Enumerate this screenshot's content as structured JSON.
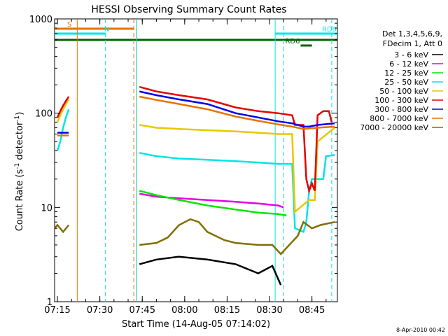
{
  "chart_data": {
    "type": "line",
    "title": "HESSI Observing Summary Count Rates",
    "xlabel": "Start Time (14-Aug-05 07:14:02)",
    "ylabel_main": "Count Rate (s",
    "ylabel_sup1": "-1",
    "ylabel_mid": " detector",
    "ylabel_sup2": "-1",
    "ylabel_end": ")",
    "yscale": "log",
    "xlim": [
      "07:14",
      "08:54"
    ],
    "ylim": [
      1,
      1000
    ],
    "x_ticks": [
      "07:15",
      "07:30",
      "07:45",
      "08:00",
      "08:15",
      "08:30",
      "08:45"
    ],
    "y_ticks": [
      "1",
      "10",
      "100",
      "1000"
    ],
    "legend_header": [
      "Det 1,3,4,5,6,9,",
      "FDecim 1, Att 0"
    ],
    "legend_position": "right",
    "footer": "8-Apr-2010 00:42",
    "flags": [
      {
        "label": "S",
        "start": "07:14",
        "end": "07:42",
        "color": "#e67300"
      },
      {
        "label": "N",
        "start": "07:14",
        "end": "07:32",
        "color": "#00e5e5"
      },
      {
        "label": "RD9",
        "start": "08:32",
        "end": "08:54",
        "color": "#00e5e5"
      },
      {
        "label": "RD6",
        "start": "08:41",
        "end": "08:45",
        "color": "#006400"
      }
    ],
    "full_flag_color": "#006400",
    "vlines": [
      {
        "time": "07:22",
        "color": "#e67300",
        "style": "solid"
      },
      {
        "time": "07:32",
        "color": "#00e5e5",
        "style": "dashed"
      },
      {
        "time": "07:42",
        "color": "#e67300",
        "style": "dashed"
      },
      {
        "time": "07:43",
        "color": "#e67300",
        "style": "solid"
      },
      {
        "time": "07:43",
        "color": "#00e5e5",
        "style": "solid"
      },
      {
        "time": "08:32",
        "color": "#00e5e5",
        "style": "solid"
      },
      {
        "time": "08:35",
        "color": "#00e5e5",
        "style": "dashed"
      },
      {
        "time": "08:52",
        "color": "#00e5e5",
        "style": "dashed"
      }
    ],
    "series": [
      {
        "name": "3 - 6 keV",
        "color": "#000000",
        "values": [
          [
            "07:44",
            2.5
          ],
          [
            "07:50",
            2.8
          ],
          [
            "07:58",
            3.0
          ],
          [
            "08:08",
            2.8
          ],
          [
            "08:18",
            2.5
          ],
          [
            "08:26",
            2.0
          ],
          [
            "08:31",
            2.4
          ],
          [
            "08:34",
            1.5
          ]
        ]
      },
      {
        "name": "6 - 12 keV",
        "color": "#e600e6",
        "values": [
          [
            "07:44",
            14
          ],
          [
            "07:50",
            13
          ],
          [
            "07:58",
            12.5
          ],
          [
            "08:08",
            12
          ],
          [
            "08:18",
            11.5
          ],
          [
            "08:26",
            11
          ],
          [
            "08:33",
            10.5
          ],
          [
            "08:35",
            10
          ]
        ]
      },
      {
        "name": "12 - 25 keV",
        "color": "#00e600",
        "values": [
          [
            "07:44",
            15
          ],
          [
            "07:50",
            13.5
          ],
          [
            "07:58",
            12
          ],
          [
            "08:08",
            10.5
          ],
          [
            "08:18",
            9.5
          ],
          [
            "08:26",
            8.8
          ],
          [
            "08:33",
            8.5
          ],
          [
            "08:36",
            8.2
          ]
        ]
      },
      {
        "name": "25 - 50 keV",
        "color": "#00e5e5",
        "values": [
          [
            "07:15",
            40
          ],
          [
            "07:16",
            50
          ],
          [
            "07:17",
            70
          ],
          [
            "07:18",
            90
          ],
          [
            "07:19",
            110
          ],
          [
            "07:44",
            38
          ],
          [
            "07:50",
            35
          ],
          [
            "07:58",
            33
          ],
          [
            "08:08",
            32
          ],
          [
            "08:18",
            31
          ],
          [
            "08:26",
            30
          ],
          [
            "08:33",
            29
          ],
          [
            "08:38",
            29
          ],
          [
            "08:39",
            6
          ],
          [
            "08:42",
            5.5
          ],
          [
            "08:43",
            7
          ],
          [
            "08:44",
            15
          ],
          [
            "08:45",
            20
          ],
          [
            "08:49",
            20
          ],
          [
            "08:50",
            35
          ],
          [
            "08:53",
            36
          ]
        ]
      },
      {
        "name": "50 - 100 keV",
        "color": "#e6c800",
        "values": [
          [
            "07:15",
            80
          ],
          [
            "07:16",
            95
          ],
          [
            "07:17",
            110
          ],
          [
            "07:18",
            125
          ],
          [
            "07:19",
            140
          ],
          [
            "07:44",
            75
          ],
          [
            "07:50",
            70
          ],
          [
            "07:58",
            68
          ],
          [
            "08:08",
            66
          ],
          [
            "08:18",
            64
          ],
          [
            "08:26",
            62
          ],
          [
            "08:33",
            60
          ],
          [
            "08:38",
            60
          ],
          [
            "08:39",
            9
          ],
          [
            "08:44",
            12
          ],
          [
            "08:46",
            12
          ],
          [
            "08:47",
            50
          ],
          [
            "08:53",
            70
          ]
        ]
      },
      {
        "name": "100 - 300 keV",
        "color": "#e60000",
        "values": [
          [
            "07:15",
            90
          ],
          [
            "07:16",
            105
          ],
          [
            "07:17",
            120
          ],
          [
            "07:18",
            135
          ],
          [
            "07:19",
            150
          ],
          [
            "07:44",
            190
          ],
          [
            "07:50",
            170
          ],
          [
            "07:58",
            155
          ],
          [
            "08:08",
            140
          ],
          [
            "08:18",
            115
          ],
          [
            "08:26",
            105
          ],
          [
            "08:33",
            100
          ],
          [
            "08:38",
            95
          ],
          [
            "08:39",
            75
          ],
          [
            "08:42",
            75
          ],
          [
            "08:43",
            20
          ],
          [
            "08:44",
            15
          ],
          [
            "08:45",
            18
          ],
          [
            "08:46",
            15
          ],
          [
            "08:47",
            95
          ],
          [
            "08:49",
            105
          ],
          [
            "08:51",
            105
          ],
          [
            "08:52",
            80
          ]
        ]
      },
      {
        "name": "300 - 800 keV",
        "color": "#0000e6",
        "values": [
          [
            "07:15",
            62
          ],
          [
            "07:19",
            62
          ],
          [
            "07:44",
            170
          ],
          [
            "07:50",
            155
          ],
          [
            "07:58",
            140
          ],
          [
            "08:08",
            125
          ],
          [
            "08:18",
            100
          ],
          [
            "08:26",
            90
          ],
          [
            "08:33",
            82
          ],
          [
            "08:38",
            78
          ],
          [
            "08:42",
            72
          ],
          [
            "08:44",
            72
          ],
          [
            "08:47",
            75
          ],
          [
            "08:53",
            78
          ]
        ]
      },
      {
        "name": "800 - 7000 keV",
        "color": "#e67300",
        "values": [
          [
            "07:15",
            58
          ],
          [
            "07:19",
            58
          ],
          [
            "07:44",
            150
          ],
          [
            "07:50",
            138
          ],
          [
            "07:58",
            125
          ],
          [
            "08:08",
            110
          ],
          [
            "08:18",
            92
          ],
          [
            "08:26",
            83
          ],
          [
            "08:33",
            76
          ],
          [
            "08:38",
            72
          ],
          [
            "08:42",
            68
          ],
          [
            "08:47",
            70
          ],
          [
            "08:53",
            72
          ]
        ]
      },
      {
        "name": "7000 - 20000 keV",
        "color": "#807000",
        "values": [
          [
            "07:14",
            6
          ],
          [
            "07:15",
            6.5
          ],
          [
            "07:17",
            5.5
          ],
          [
            "07:19",
            6.5
          ],
          [
            "07:44",
            4.0
          ],
          [
            "07:50",
            4.2
          ],
          [
            "07:54",
            4.8
          ],
          [
            "07:58",
            6.5
          ],
          [
            "08:02",
            7.5
          ],
          [
            "08:05",
            7.0
          ],
          [
            "08:08",
            5.5
          ],
          [
            "08:14",
            4.5
          ],
          [
            "08:18",
            4.2
          ],
          [
            "08:26",
            4.0
          ],
          [
            "08:31",
            4.0
          ],
          [
            "08:34",
            3.2
          ],
          [
            "08:37",
            4.0
          ],
          [
            "08:40",
            5.0
          ],
          [
            "08:42",
            7.0
          ],
          [
            "08:45",
            6.0
          ],
          [
            "08:48",
            6.5
          ],
          [
            "08:53",
            7.0
          ]
        ]
      }
    ]
  }
}
